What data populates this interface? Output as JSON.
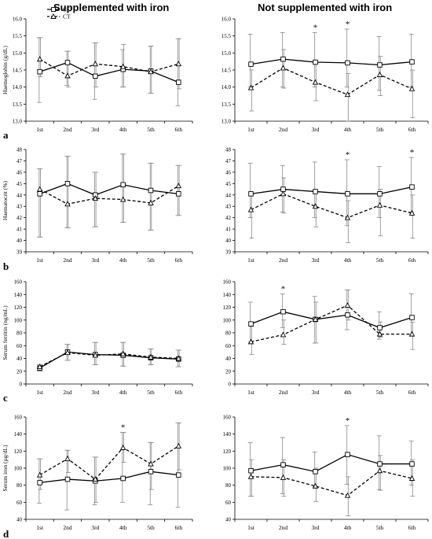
{
  "columns": [
    "Supplemented with iron",
    "Not supplemented with iron"
  ],
  "legend": [
    {
      "name": "CC",
      "style": "solid",
      "marker": "open-square"
    },
    {
      "name": "CT",
      "style": "dashed",
      "marker": "open-triangle"
    }
  ],
  "colors": {
    "line": "#000000",
    "errorbar": "#888888",
    "background": "#ffffff"
  },
  "chart_data": [
    {
      "type": "line",
      "panel": "a",
      "column": 0,
      "categories": [
        "1st",
        "2nd",
        "3rd",
        "4th",
        "5th",
        "6th"
      ],
      "ylabel": "Haemoglobin (g/dL)",
      "ylim": [
        13.0,
        16.0
      ],
      "yticks": [
        "13.0",
        "13.5",
        "14.0",
        "14.5",
        "15.0",
        "15.5",
        "16.0"
      ],
      "series": [
        {
          "name": "CC",
          "values": [
            14.45,
            14.72,
            14.32,
            14.52,
            14.47,
            14.14
          ],
          "err_hi": [
            15.45,
            15.05,
            15.3,
            15.1,
            15.2,
            15.42
          ],
          "err_lo": [
            13.55,
            14.05,
            13.64,
            14.0,
            13.82,
            13.45
          ]
        },
        {
          "name": "CT",
          "values": [
            14.82,
            14.33,
            14.68,
            14.6,
            14.45,
            14.68
          ],
          "err_hi": [
            15.45,
            15.05,
            15.3,
            15.25,
            15.2,
            15.42
          ],
          "err_lo": [
            14.3,
            14.0,
            14.0,
            14.0,
            13.82,
            13.95
          ]
        }
      ],
      "stars": []
    },
    {
      "type": "line",
      "panel": "",
      "column": 1,
      "categories": [
        "1st",
        "2nd",
        "3rd",
        "4th",
        "5th",
        "6th"
      ],
      "ylabel": "",
      "ylim": [
        13.0,
        16.0
      ],
      "yticks": [
        "13.0",
        "13.5",
        "14.0",
        "14.5",
        "15.0",
        "15.5",
        "16.0"
      ],
      "series": [
        {
          "name": "CC",
          "values": [
            14.67,
            14.82,
            14.73,
            14.71,
            14.65,
            14.74
          ],
          "err_hi": [
            15.55,
            15.6,
            15.6,
            15.7,
            15.48,
            15.55
          ],
          "err_lo": [
            14.0,
            14.0,
            14.0,
            14.0,
            13.9,
            14.0
          ]
        },
        {
          "name": "CT",
          "values": [
            13.98,
            14.56,
            14.14,
            13.78,
            14.36,
            13.95
          ],
          "err_hi": [
            14.5,
            15.1,
            14.7,
            14.4,
            14.9,
            14.5
          ],
          "err_lo": [
            13.3,
            13.97,
            13.6,
            13.0,
            13.75,
            13.1
          ]
        }
      ],
      "stars": [
        "3rd",
        "4th"
      ]
    },
    {
      "type": "line",
      "panel": "b",
      "column": 0,
      "categories": [
        "1st",
        "2nd",
        "3rd",
        "4th",
        "5th",
        "6th"
      ],
      "ylabel": "Haematocrit (%)",
      "ylim": [
        39,
        48
      ],
      "yticks": [
        "39",
        "40",
        "41",
        "42",
        "43",
        "44",
        "45",
        "46",
        "47",
        "48"
      ],
      "series": [
        {
          "name": "CC",
          "values": [
            44.1,
            45.0,
            44.0,
            44.9,
            44.4,
            44.1
          ],
          "err_hi": [
            46.3,
            47.4,
            46.0,
            47.6,
            46.8,
            46.6
          ],
          "err_lo": [
            40.3,
            41.1,
            41.2,
            41.6,
            40.9,
            42.2
          ]
        },
        {
          "name": "CT",
          "values": [
            44.5,
            43.2,
            43.7,
            43.6,
            43.3,
            44.8
          ],
          "err_hi": [
            46.3,
            47.4,
            46.0,
            47.6,
            46.8,
            46.6
          ],
          "err_lo": [
            40.3,
            41.1,
            41.2,
            41.6,
            40.9,
            42.2
          ]
        }
      ],
      "stars": []
    },
    {
      "type": "line",
      "panel": "",
      "column": 1,
      "categories": [
        "1st",
        "2nd",
        "3rd",
        "4th",
        "5th",
        "6th"
      ],
      "ylabel": "",
      "ylim": [
        39,
        48
      ],
      "yticks": [
        "39",
        "40",
        "41",
        "42",
        "43",
        "44",
        "45",
        "46",
        "47",
        "48"
      ],
      "series": [
        {
          "name": "CC",
          "values": [
            44.1,
            44.5,
            44.3,
            44.1,
            44.1,
            44.7
          ],
          "err_hi": [
            46.8,
            46.6,
            46.9,
            47.1,
            46.5,
            47.3
          ],
          "err_lo": [
            42.0,
            42.5,
            42.0,
            41.3,
            42.0,
            42.5
          ]
        },
        {
          "name": "CT",
          "values": [
            42.7,
            44.1,
            43.0,
            42.0,
            43.1,
            42.4
          ],
          "err_hi": [
            44.0,
            45.5,
            44.3,
            43.5,
            44.5,
            44.0
          ],
          "err_lo": [
            40.2,
            42.4,
            41.2,
            39.8,
            40.4,
            40.2
          ]
        }
      ],
      "stars": [
        "4th",
        "6th"
      ]
    },
    {
      "type": "line",
      "panel": "c",
      "column": 0,
      "categories": [
        "1st",
        "2nd",
        "3rd",
        "4th",
        "5th",
        "6th"
      ],
      "ylabel": "Serum ferritin (ng/mL)",
      "ylim": [
        0,
        160
      ],
      "yticks": [
        "0",
        "20",
        "40",
        "60",
        "80",
        "100",
        "120",
        "140",
        "160"
      ],
      "series": [
        {
          "name": "CC",
          "values": [
            25,
            50,
            46,
            45,
            41,
            39
          ],
          "err_hi": [
            30,
            62,
            65,
            65,
            55,
            53
          ],
          "err_lo": [
            20,
            37,
            30,
            28,
            30,
            27
          ]
        },
        {
          "name": "CT",
          "values": [
            27,
            49,
            45,
            47,
            42,
            40
          ],
          "err_hi": [
            30,
            62,
            65,
            65,
            55,
            53
          ],
          "err_lo": [
            20,
            37,
            30,
            28,
            30,
            27
          ]
        }
      ],
      "stars": []
    },
    {
      "type": "line",
      "panel": "",
      "column": 1,
      "categories": [
        "1st",
        "2nd",
        "3rd",
        "4th",
        "5th",
        "6th"
      ],
      "ylabel": "",
      "ylim": [
        0,
        160
      ],
      "yticks": [
        "0",
        "20",
        "40",
        "60",
        "80",
        "100",
        "120",
        "140",
        "160"
      ],
      "series": [
        {
          "name": "CC",
          "values": [
            94,
            113,
            101,
            108,
            88,
            104
          ],
          "err_hi": [
            128,
            141,
            137,
            147,
            113,
            141
          ],
          "err_lo": [
            66,
            88,
            64,
            85,
            70,
            75
          ]
        },
        {
          "name": "CT",
          "values": [
            66,
            77,
            101,
            123,
            78,
            78
          ],
          "err_hi": [
            90,
            100,
            128,
            147,
            97,
            97
          ],
          "err_lo": [
            46,
            62,
            64,
            100,
            73,
            54
          ]
        }
      ],
      "stars": [
        "2nd"
      ]
    },
    {
      "type": "line",
      "panel": "d",
      "column": 0,
      "categories": [
        "1st",
        "2nd",
        "3rd",
        "4th",
        "5th",
        "6th"
      ],
      "ylabel": "Serum iron (µg/dL)",
      "ylim": [
        40,
        160
      ],
      "yticks": [
        "40",
        "60",
        "80",
        "100",
        "120",
        "140",
        "160"
      ],
      "series": [
        {
          "name": "CC",
          "values": [
            83,
            87,
            85,
            88,
            96,
            92
          ],
          "err_hi": [
            111,
            121,
            113,
            142,
            130,
            153
          ],
          "err_lo": [
            59,
            51,
            57,
            60,
            57,
            54
          ]
        },
        {
          "name": "CT",
          "values": [
            92,
            111,
            87,
            124,
            105,
            126
          ],
          "err_hi": [
            111,
            121,
            113,
            142,
            130,
            153
          ],
          "err_lo": [
            75,
            95,
            60,
            107,
            75,
            98
          ]
        }
      ],
      "stars": [
        "4th"
      ]
    },
    {
      "type": "line",
      "panel": "",
      "column": 1,
      "categories": [
        "1st",
        "2nd",
        "3rd",
        "4th",
        "5th",
        "6th"
      ],
      "ylabel": "",
      "ylim": [
        40,
        160
      ],
      "yticks": [
        "40",
        "60",
        "80",
        "100",
        "120",
        "140",
        "160"
      ],
      "series": [
        {
          "name": "CC",
          "values": [
            97,
            104,
            96,
            116,
            105,
            105
          ],
          "err_hi": [
            130,
            136,
            119,
            150,
            138,
            132
          ],
          "err_lo": [
            67,
            70,
            78,
            81,
            75,
            80
          ]
        },
        {
          "name": "CT",
          "values": [
            90,
            89,
            79,
            68,
            97,
            88
          ],
          "err_hi": [
            110,
            110,
            100,
            90,
            115,
            110
          ],
          "err_lo": [
            67,
            67,
            61,
            44,
            74,
            67
          ]
        }
      ],
      "stars": [
        "4th"
      ]
    }
  ]
}
